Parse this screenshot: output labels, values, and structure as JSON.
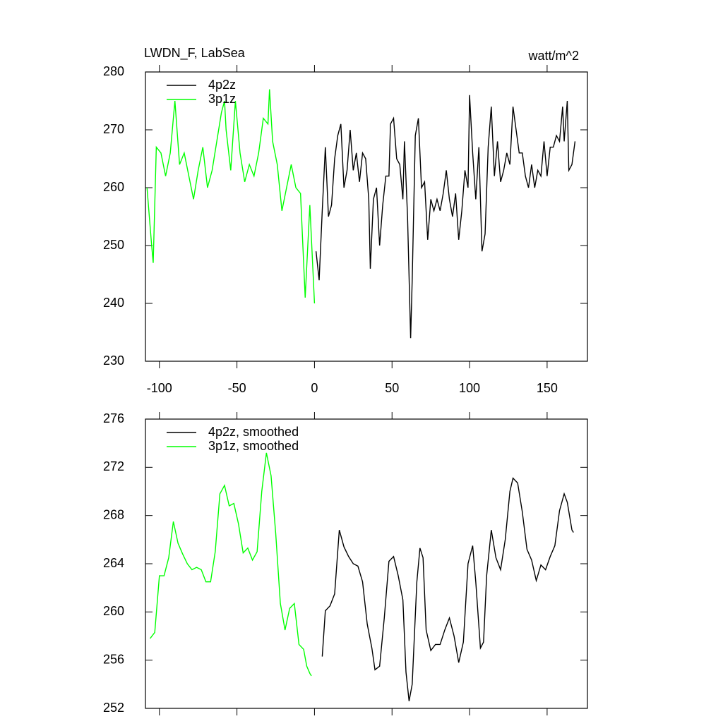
{
  "chart_data": [
    {
      "type": "line",
      "title": "LWDN_F, LabSea",
      "units_label": "watt/m^2",
      "xlim": [
        -109,
        176
      ],
      "xticks": [
        -100,
        -50,
        0,
        50,
        100,
        150
      ],
      "ylim": [
        230,
        280
      ],
      "yticks": [
        230,
        240,
        250,
        260,
        270,
        280
      ],
      "grid": false,
      "legend": "upper left",
      "series": [
        {
          "name": "4p2z",
          "color": "#000000",
          "x": [
            1,
            3,
            5,
            7,
            9,
            11,
            13,
            15,
            17,
            19,
            21,
            23,
            25,
            27,
            29,
            31,
            33,
            35,
            36,
            38,
            40,
            42,
            44,
            46,
            48,
            49,
            51,
            53,
            55,
            57,
            58,
            60,
            62,
            63,
            65,
            67,
            69,
            71,
            73,
            75,
            77,
            79,
            81,
            83,
            85,
            87,
            89,
            91,
            93,
            95,
            97,
            99,
            100,
            102,
            104,
            106,
            108,
            110,
            112,
            114,
            116,
            118,
            120,
            122,
            124,
            126,
            128,
            130,
            132,
            134,
            136,
            138,
            140,
            142,
            144,
            146,
            148,
            150,
            152,
            154,
            156,
            158,
            160,
            161,
            163,
            164,
            166,
            168
          ],
          "values": [
            249,
            244,
            256,
            267,
            255,
            257,
            265,
            269,
            271,
            260,
            263,
            270,
            263,
            266,
            261,
            266,
            265,
            258,
            246,
            258,
            260,
            250,
            257,
            262,
            262,
            271,
            272,
            265,
            264,
            258,
            268,
            255,
            234,
            244,
            269,
            272,
            260,
            261,
            251,
            258,
            256,
            258,
            256,
            259,
            263,
            258,
            255,
            259,
            251,
            256,
            263,
            260,
            276,
            266,
            258,
            267,
            249,
            252,
            267,
            274,
            262,
            268,
            261,
            263,
            266,
            264,
            274,
            270,
            266,
            266,
            262,
            260,
            264,
            260,
            263,
            262,
            268,
            262,
            267,
            267,
            269,
            268,
            274,
            268,
            275,
            263,
            264,
            268
          ]
        },
        {
          "name": "3p1z",
          "color": "#00ff00",
          "x": [
            -108,
            -105,
            -104,
            -102,
            -99,
            -96,
            -93,
            -90,
            -87,
            -84,
            -81,
            -78,
            -75,
            -72,
            -69,
            -66,
            -63,
            -60,
            -58,
            -57,
            -54,
            -51,
            -48,
            -45,
            -42,
            -39,
            -36,
            -33,
            -30,
            -29,
            -27,
            -24,
            -21,
            -18,
            -15,
            -12,
            -9,
            -6,
            -3,
            0
          ],
          "values": [
            260,
            250,
            247,
            267,
            266,
            262,
            266,
            275,
            264,
            266,
            262,
            258,
            263,
            267,
            260,
            263,
            268,
            273,
            275,
            270,
            263,
            275,
            266,
            261,
            264,
            262,
            266,
            272,
            271,
            277,
            268,
            264,
            256,
            260,
            264,
            260,
            259,
            241,
            257,
            240
          ]
        }
      ]
    },
    {
      "type": "line",
      "xlim": [
        -109,
        176
      ],
      "xticks": [
        -100,
        -50,
        0,
        50,
        100,
        150
      ],
      "ylim": [
        252,
        276
      ],
      "yticks": [
        252,
        256,
        260,
        264,
        268,
        272,
        276
      ],
      "grid": false,
      "legend": "upper left",
      "series": [
        {
          "name": "4p2z, smoothed",
          "color": "#000000",
          "x": [
            5,
            7,
            10,
            13,
            16,
            19,
            22,
            25,
            28,
            31,
            34,
            37,
            39,
            42,
            45,
            48,
            51,
            54,
            57,
            59,
            61,
            63,
            66,
            68,
            70,
            72,
            75,
            78,
            81,
            84,
            87,
            90,
            93,
            96,
            99,
            102,
            104,
            107,
            109,
            111,
            114,
            117,
            120,
            123,
            126,
            128,
            131,
            134,
            137,
            140,
            143,
            146,
            149,
            152,
            155,
            158,
            161,
            163,
            166,
            167
          ],
          "values": [
            256.3,
            260.1,
            260.5,
            261.5,
            266.8,
            265.4,
            264.6,
            264,
            263.8,
            262.5,
            259,
            257,
            255.2,
            255.5,
            259.5,
            264.2,
            264.6,
            263,
            261,
            255,
            252.6,
            254,
            262.5,
            265.3,
            264.5,
            258.5,
            256.8,
            257.3,
            257.3,
            258.5,
            259.5,
            258,
            255.8,
            257.5,
            264,
            265.5,
            262.5,
            257,
            257.5,
            263,
            266.8,
            264.5,
            263.5,
            266,
            270,
            271.1,
            270.7,
            268.3,
            265.2,
            264.3,
            262.6,
            263.9,
            263.5,
            264.6,
            265.5,
            268.4,
            269.8,
            269.1,
            266.8,
            266.6
          ]
        },
        {
          "name": "3p1z, smoothed",
          "color": "#00ff00",
          "x": [
            -106,
            -103,
            -100,
            -97,
            -94,
            -91,
            -88,
            -85,
            -82,
            -79,
            -76,
            -73,
            -70,
            -67,
            -64,
            -61,
            -58,
            -55,
            -52,
            -49,
            -46,
            -43,
            -40,
            -37,
            -34,
            -31,
            -28,
            -25,
            -22,
            -19,
            -16,
            -13,
            -10,
            -7,
            -5,
            -3,
            -2
          ],
          "values": [
            257.8,
            258.3,
            263,
            263,
            264.5,
            267.5,
            265.7,
            264.8,
            264,
            263.5,
            263.7,
            263.5,
            262.5,
            262.5,
            265,
            269.8,
            270.5,
            268.8,
            269,
            267.3,
            264.9,
            265.3,
            264.3,
            265,
            270,
            273.2,
            271.3,
            266.5,
            260.7,
            258.5,
            260.3,
            260.7,
            257.3,
            256.9,
            255.5,
            254.9,
            254.7
          ]
        }
      ]
    }
  ]
}
